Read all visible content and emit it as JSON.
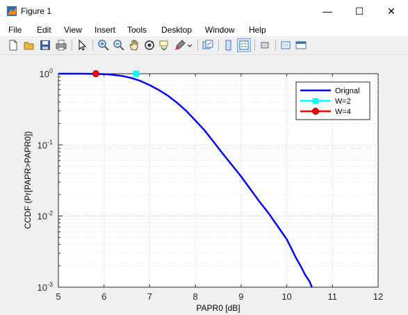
{
  "window": {
    "title": "Figure 1",
    "minimize": "—",
    "maximize": "☐",
    "close": "✕"
  },
  "menubar": [
    "File",
    "Edit",
    "View",
    "Insert",
    "Tools",
    "Desktop",
    "Window",
    "Help"
  ],
  "toolbar": [
    "new-figure-icon",
    "open-file-icon",
    "save-icon",
    "print-icon",
    "edit-plot-arrow-icon",
    "zoom-in-icon",
    "zoom-out-icon",
    "pan-hand-icon",
    "rotate-3d-icon",
    "data-cursor-icon",
    "brush-icon",
    "link-plot-icon",
    "insert-colorbar-icon",
    "insert-legend-icon",
    "hide-plot-tools-icon",
    "show-plot-tools-icon"
  ],
  "chart_data": {
    "type": "line",
    "xlabel": "PAPR0 [dB]",
    "ylabel": "CCDF (Pr[PAPR>PAPR0])",
    "xlim": [
      5,
      12
    ],
    "ylim": [
      0.001,
      1
    ],
    "yscale": "log",
    "grid": true,
    "minor_grid": true,
    "legend_position": "top-right",
    "x_ticks": [
      "5",
      "6",
      "7",
      "8",
      "9",
      "10",
      "11",
      "12"
    ],
    "y_ticks": [
      {
        "value": 1,
        "base": "10",
        "exp": "0"
      },
      {
        "value": 0.1,
        "base": "10",
        "exp": "-1"
      },
      {
        "value": 0.01,
        "base": "10",
        "exp": "-2"
      },
      {
        "value": 0.001,
        "base": "10",
        "exp": "-3"
      }
    ],
    "series": [
      {
        "name": "Orignal",
        "color": "#0000ff",
        "marker": "none",
        "x": [
          5.0,
          5.5,
          5.8,
          6.0,
          6.2,
          6.4,
          6.6,
          6.8,
          7.0,
          7.2,
          7.4,
          7.6,
          7.8,
          8.0,
          8.2,
          8.4,
          8.6,
          8.8,
          9.0,
          9.2,
          9.4,
          9.6,
          9.8,
          10.0,
          10.1,
          10.2,
          10.3,
          10.4,
          10.5,
          10.55
        ],
        "y": [
          1.0,
          0.999,
          0.995,
          0.985,
          0.965,
          0.93,
          0.87,
          0.79,
          0.69,
          0.59,
          0.49,
          0.39,
          0.3,
          0.22,
          0.16,
          0.11,
          0.075,
          0.052,
          0.036,
          0.024,
          0.016,
          0.011,
          0.0072,
          0.0047,
          0.0035,
          0.0026,
          0.002,
          0.0015,
          0.0012,
          0.001
        ]
      },
      {
        "name": "W=2",
        "color": "#00ffff",
        "marker": "square",
        "x": [
          6.7
        ],
        "y": [
          1.0
        ]
      },
      {
        "name": "W=4",
        "color": "#ff0000",
        "marker": "circle",
        "x": [
          5.82
        ],
        "y": [
          1.0
        ]
      }
    ]
  }
}
